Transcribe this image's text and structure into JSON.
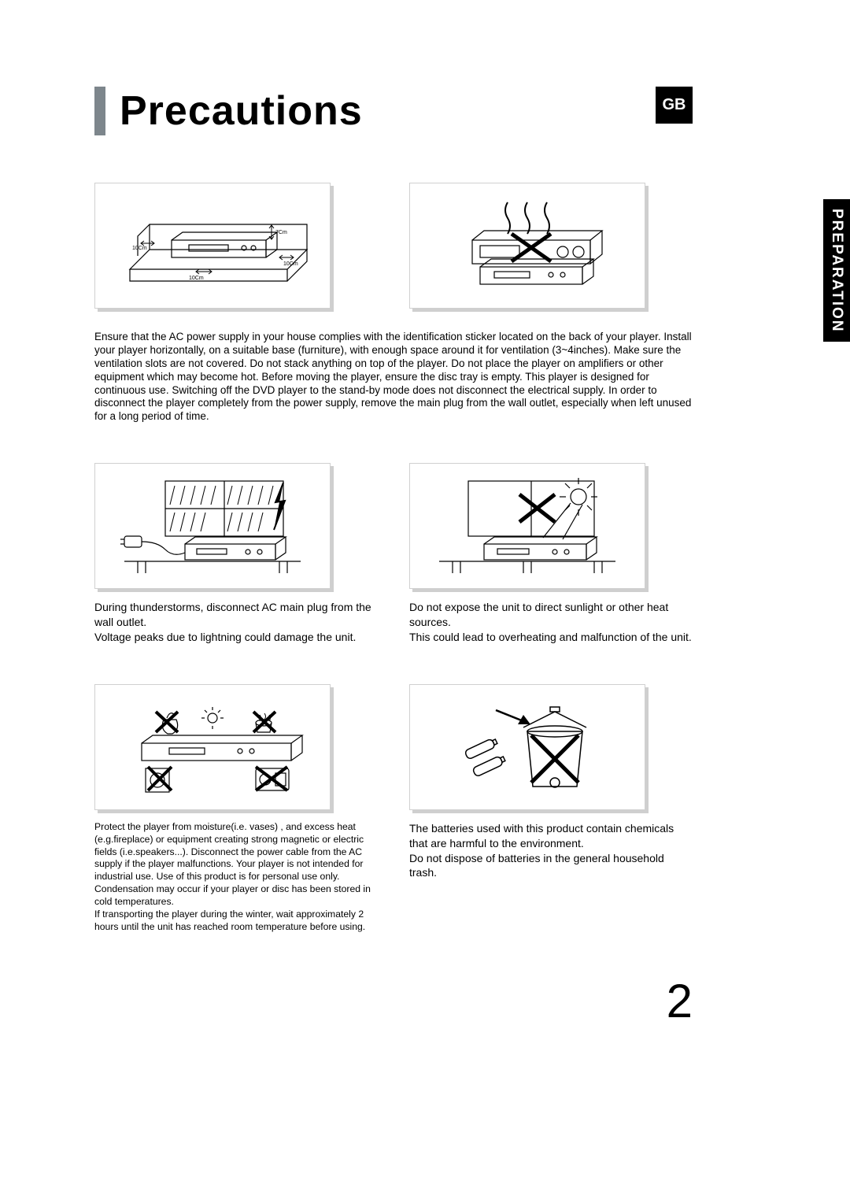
{
  "side_tab": "PREPARATION",
  "header": {
    "title": "Precautions",
    "badge": "GB",
    "title_bar_color": "#7d868c",
    "title_fontsize": 52
  },
  "page_number": "2",
  "illustration_labels": {
    "clearance_top": "7Cm",
    "clearance_left": "10Cm",
    "clearance_right": "10Cm",
    "clearance_front": "10Cm"
  },
  "intro": "Ensure that the AC power supply in your house complies with the identification sticker located on the back of your player. Install your player horizontally, on a suitable base (furniture), with enough space around it for ventilation (3~4inches). Make sure the ventilation slots are not covered. Do not stack anything on top of the player. Do not place the player on amplifiers or other equipment which may become hot. Before moving the player, ensure the disc tray is empty. This player is designed for continuous use. Switching off the DVD player to the stand-by mode does not disconnect the electrical supply. In order to disconnect the player completely from the power supply, remove the main plug from the wall outlet, especially when left unused for a long period of time.",
  "mid_left": "During thunderstorms, disconnect AC main plug from the wall outlet.\nVoltage peaks due to lightning could damage the unit.",
  "mid_right": "Do not expose the unit to direct sunlight or other heat sources.\nThis could lead to overheating and malfunction of the unit.",
  "bot_left": "Protect the player from moisture(i.e. vases) , and excess heat (e.g.fireplace) or equipment creating strong magnetic or electric fields (i.e.speakers...). Disconnect the power cable from the AC supply if the player malfunctions. Your player is not intended for industrial use. Use of this product is for personal use only.\nCondensation may occur if your player or disc has been stored in cold temperatures.\nIf transporting the player during the winter, wait approximately 2 hours until the unit has reached room temperature before using.",
  "bot_right": "The batteries used with this product contain chemicals that are harmful to the environment.\nDo not dispose of batteries in the general household trash.",
  "colors": {
    "background": "#ffffff",
    "text": "#000000",
    "shadow": "#cfcfcf",
    "border": "#d0d0d0"
  }
}
